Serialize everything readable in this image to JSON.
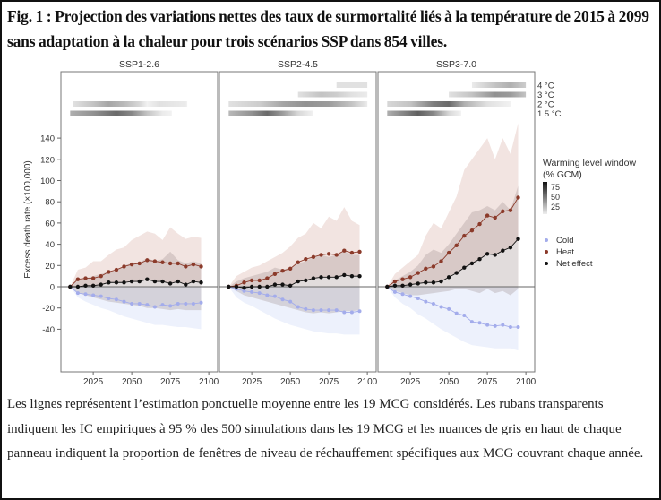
{
  "title": "Fig. 1 : Projection des variations nettes des taux de surmortalité liés à la température de 2015 à 2099 sans adaptation à la chaleur pour trois scénarios SSP dans 854 villes.",
  "caption": "Les lignes représentent l’estimation ponctuelle moyenne entre les 19 MCG considérés. Les rubans transparents indiquent les IC empiriques à 95 % des 500 simulations dans les 19 MCG et les nuances de gris en haut de chaque panneau indiquent la proportion de fenêtres de niveau de réchauffement spécifiques aux MCG couvrant chaque année.",
  "colors": {
    "heat": "#8b3a2a",
    "heat_band": "#f2e4e1",
    "net": "#111111",
    "net_band": "#9a8a8a",
    "cold": "#a3aceb",
    "cold_band": "#edf1fc"
  },
  "chart_data": {
    "type": "line",
    "ylabel": "Excess death rate (×100,000)",
    "ylim": [
      -80,
      202
    ],
    "xlim": [
      2004,
      2102
    ],
    "yticks": [
      -40,
      -20,
      0,
      20,
      40,
      60,
      80,
      100,
      120,
      140
    ],
    "xticks": [
      2025,
      2050,
      2075,
      2100
    ],
    "x": [
      2010,
      2015,
      2020,
      2025,
      2030,
      2035,
      2040,
      2045,
      2050,
      2055,
      2060,
      2065,
      2070,
      2075,
      2080,
      2085,
      2090,
      2095
    ],
    "legend": {
      "warming_title": "Warming level window",
      "warming_subtitle": "(% GCM)",
      "warming_ticks": [
        "75",
        "50",
        "25"
      ],
      "series": [
        "Cold",
        "Heat",
        "Net effect"
      ],
      "placement": "right"
    },
    "warming_levels": [
      "4 °C",
      "3 °C",
      "2 °C",
      "1.5 °C"
    ],
    "panels": [
      {
        "title": "SSP1-2.6",
        "heat": [
          0,
          7,
          8,
          8,
          10,
          14,
          16,
          19,
          21,
          22,
          25,
          24,
          23,
          22,
          22,
          19,
          21,
          19
        ],
        "heat_upper": [
          0,
          16,
          18,
          24,
          24,
          30,
          35,
          37,
          44,
          48,
          52,
          50,
          44,
          56,
          50,
          45,
          47,
          46
        ],
        "net": [
          0,
          0,
          1,
          1,
          2,
          4,
          4,
          4,
          5,
          5,
          7,
          5,
          5,
          3,
          5,
          2,
          5,
          4
        ],
        "net_upper": [
          0,
          6,
          8,
          10,
          12,
          14,
          15,
          20,
          22,
          23,
          27,
          24,
          26,
          33,
          25,
          22,
          24,
          22
        ],
        "net_lower": [
          0,
          -6,
          -8,
          -10,
          -12,
          -14,
          -15,
          -16,
          -17,
          -18,
          -20,
          -20,
          -21,
          -22,
          -21,
          -22,
          -22,
          -22
        ],
        "cold": [
          0,
          -6,
          -7,
          -8,
          -9,
          -11,
          -12,
          -14,
          -16,
          -16,
          -17,
          -19,
          -17,
          -18,
          -16,
          -16,
          -16,
          -15
        ],
        "cold_lower": [
          0,
          -10,
          -14,
          -17,
          -20,
          -22,
          -25,
          -28,
          -30,
          -32,
          -34,
          -36,
          -36,
          -37,
          -38,
          -38,
          -39,
          -40
        ],
        "warming": {
          "4 °C": [],
          "3 °C": [],
          "2 °C": [
            [
              2012,
              15
            ],
            [
              2025,
              30
            ],
            [
              2035,
              45
            ],
            [
              2045,
              35
            ],
            [
              2055,
              20
            ],
            [
              2060,
              0
            ],
            [
              2068,
              15
            ],
            [
              2085,
              10
            ],
            [
              2086,
              0
            ]
          ],
          "1.5 °C": [
            [
              2010,
              40
            ],
            [
              2025,
              55
            ],
            [
              2040,
              75
            ],
            [
              2050,
              60
            ],
            [
              2060,
              30
            ],
            [
              2070,
              10
            ],
            [
              2076,
              0
            ]
          ]
        }
      },
      {
        "title": "SSP2-4.5",
        "heat": [
          0,
          1,
          4,
          6,
          6,
          8,
          12,
          15,
          17,
          23,
          26,
          28,
          30,
          31,
          30,
          34,
          32,
          33
        ],
        "heat_upper": [
          0,
          10,
          14,
          18,
          20,
          24,
          28,
          32,
          38,
          46,
          50,
          60,
          55,
          66,
          62,
          75,
          62,
          58
        ],
        "net": [
          0,
          0,
          -1,
          0,
          0,
          0,
          2,
          2,
          1,
          5,
          6,
          8,
          9,
          9,
          9,
          11,
          10,
          10
        ],
        "net_upper": [
          0,
          5,
          8,
          10,
          12,
          14,
          18,
          16,
          18,
          22,
          24,
          28,
          30,
          28,
          30,
          34,
          30,
          30
        ],
        "net_lower": [
          0,
          -4,
          -8,
          -10,
          -12,
          -14,
          -16,
          -18,
          -20,
          -22,
          -24,
          -25,
          -24,
          -25,
          -24,
          -23,
          -23,
          -22
        ],
        "cold": [
          0,
          -2,
          -4,
          -5,
          -6,
          -8,
          -9,
          -12,
          -14,
          -19,
          -21,
          -22,
          -22,
          -22,
          -22,
          -24,
          -24,
          -23
        ],
        "cold_lower": [
          0,
          -10,
          -15,
          -18,
          -22,
          -26,
          -30,
          -33,
          -36,
          -38,
          -40,
          -42,
          -43,
          -44,
          -44,
          -45,
          -45,
          -45
        ],
        "warming": {
          "4 °C": [
            [
              2080,
              15
            ],
            [
              2100,
              15
            ]
          ],
          "3 °C": [
            [
              2055,
              15
            ],
            [
              2070,
              30
            ],
            [
              2080,
              25
            ],
            [
              2090,
              15
            ],
            [
              2100,
              10
            ]
          ],
          "2 °C": [
            [
              2010,
              15
            ],
            [
              2030,
              25
            ],
            [
              2045,
              45
            ],
            [
              2060,
              55
            ],
            [
              2075,
              50
            ],
            [
              2090,
              30
            ],
            [
              2100,
              10
            ]
          ],
          "1.5 °C": [
            [
              2010,
              35
            ],
            [
              2025,
              55
            ],
            [
              2035,
              75
            ],
            [
              2045,
              50
            ],
            [
              2055,
              20
            ],
            [
              2065,
              5
            ]
          ]
        }
      },
      {
        "title": "SSP3-7.0",
        "heat": [
          0,
          5,
          7,
          9,
          13,
          17,
          19,
          24,
          32,
          39,
          48,
          53,
          59,
          67,
          65,
          71,
          72,
          84
        ],
        "heat_upper": [
          0,
          12,
          18,
          24,
          30,
          48,
          60,
          55,
          70,
          85,
          110,
          120,
          130,
          140,
          120,
          140,
          125,
          154
        ],
        "net": [
          0,
          1,
          1,
          2,
          3,
          4,
          4,
          5,
          9,
          13,
          18,
          22,
          26,
          31,
          30,
          34,
          37,
          45
        ],
        "net_upper": [
          0,
          6,
          10,
          14,
          20,
          30,
          35,
          32,
          40,
          50,
          60,
          70,
          72,
          76,
          72,
          80,
          72,
          95
        ],
        "net_lower": [
          0,
          -4,
          -6,
          -8,
          -8,
          -7,
          -6,
          -5,
          -4,
          -2,
          -2,
          -4,
          -6,
          -2,
          -6,
          -4,
          -8,
          -2
        ],
        "cold": [
          0,
          -5,
          -7,
          -9,
          -11,
          -14,
          -16,
          -19,
          -21,
          -25,
          -27,
          -33,
          -34,
          -36,
          -37,
          -36,
          -38,
          -38
        ],
        "cold_lower": [
          0,
          -10,
          -16,
          -20,
          -26,
          -30,
          -35,
          -40,
          -44,
          -48,
          -52,
          -55,
          -56,
          -57,
          -58,
          -58,
          -58,
          -60
        ],
        "warming": {
          "4 °C": [
            [
              2065,
              10
            ],
            [
              2080,
              30
            ],
            [
              2090,
              40
            ],
            [
              2100,
              25
            ]
          ],
          "3 °C": [
            [
              2050,
              15
            ],
            [
              2065,
              30
            ],
            [
              2080,
              55
            ],
            [
              2090,
              50
            ],
            [
              2100,
              30
            ]
          ],
          "2 °C": [
            [
              2010,
              20
            ],
            [
              2025,
              30
            ],
            [
              2040,
              65
            ],
            [
              2050,
              75
            ],
            [
              2060,
              40
            ],
            [
              2075,
              15
            ],
            [
              2090,
              5
            ]
          ],
          "1.5 °C": [
            [
              2010,
              40
            ],
            [
              2020,
              60
            ],
            [
              2030,
              80
            ],
            [
              2040,
              60
            ],
            [
              2050,
              20
            ],
            [
              2058,
              0
            ]
          ]
        }
      }
    ]
  }
}
